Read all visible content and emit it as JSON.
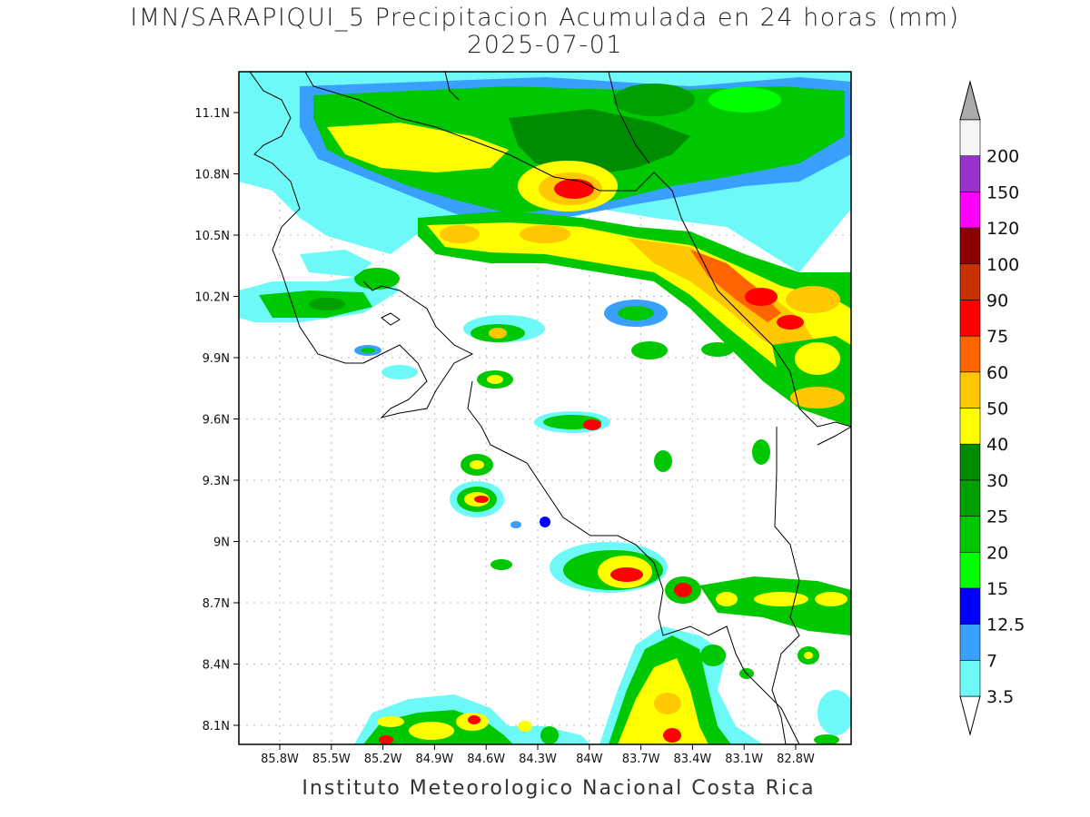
{
  "title": {
    "line1": "IMN/SARAPIQUI_5 Precipitacion Acumulada en 24 horas (mm)",
    "line2": "2025-07-01"
  },
  "footer": "Instituto Meteorologico Nacional Costa Rica",
  "map": {
    "lat_labels": [
      "11.1N",
      "10.8N",
      "10.5N",
      "10.2N",
      "9.9N",
      "9.6N",
      "9.3N",
      "9N",
      "8.7N",
      "8.4N",
      "8.1N"
    ],
    "lon_labels": [
      "85.8W",
      "85.5W",
      "85.2W",
      "84.9W",
      "84.6W",
      "84.3W",
      "84W",
      "83.7W",
      "83.4W",
      "83.1W",
      "82.8W"
    ]
  },
  "colorbar": {
    "units": "mm",
    "levels": [
      {
        "label": "3.5",
        "color": "#6ef9f9"
      },
      {
        "label": "7",
        "color": "#3aa0ff"
      },
      {
        "label": "12.5",
        "color": "#0000ff"
      },
      {
        "label": "15",
        "color": "#00ff00"
      },
      {
        "label": "20",
        "color": "#00c800"
      },
      {
        "label": "25",
        "color": "#00a000"
      },
      {
        "label": "30",
        "color": "#008c00"
      },
      {
        "label": "40",
        "color": "#ffff00"
      },
      {
        "label": "50",
        "color": "#ffc800"
      },
      {
        "label": "60",
        "color": "#ff6400"
      },
      {
        "label": "75",
        "color": "#ff0000"
      },
      {
        "label": "90",
        "color": "#c83200"
      },
      {
        "label": "100",
        "color": "#8c0000"
      },
      {
        "label": "120",
        "color": "#ff00ff"
      },
      {
        "label": "150",
        "color": "#9932cc"
      },
      {
        "label": "200",
        "color": "#f5f5f5"
      }
    ],
    "top_arrow_color": "#aaaaaa",
    "bottom_arrow_color": "#ffffff"
  }
}
